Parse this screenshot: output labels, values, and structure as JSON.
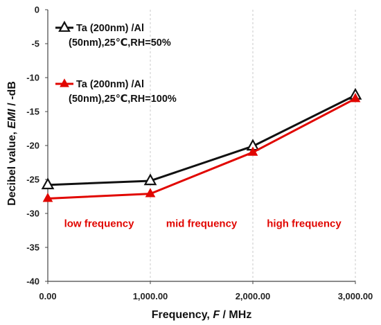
{
  "chart_data": {
    "type": "line",
    "x": [
      0,
      1000,
      2000,
      3000
    ],
    "x_tick_labels": [
      "0.00",
      "1,000.00",
      "2,000.00",
      "3,000.00"
    ],
    "xlim": [
      0,
      3000
    ],
    "ylim": [
      -40,
      0
    ],
    "y_ticks": [
      0,
      -5,
      -10,
      -15,
      -20,
      -25,
      -30,
      -35,
      -40
    ],
    "y_tick_labels": [
      "0",
      "-5",
      "-10",
      "-15",
      "-20",
      "-25",
      "-30",
      "-35",
      "-40"
    ],
    "xlabel": {
      "pre": "Frequency, ",
      "italic": "F",
      "post": " / MHz"
    },
    "ylabel": {
      "pre": "Decibel value, ",
      "italic": "EMI",
      "post": " / -dB"
    },
    "grid": "vertical dashed",
    "legend_position": "top-left",
    "series": [
      {
        "name_line1": "Ta (200nm) /Al",
        "name_line2": "(50nm),25℃,RH=50%",
        "color": "#111111",
        "marker": "hollow-triangle",
        "values": [
          -25.8,
          -25.2,
          -20.1,
          -12.6
        ]
      },
      {
        "name_line1": "Ta (200nm) /Al",
        "name_line2": "(50nm),25℃,RH=100%",
        "color": "#e10600",
        "marker": "filled-triangle",
        "values": [
          -27.8,
          -27.1,
          -21.0,
          -13.1
        ]
      }
    ],
    "annotations": [
      {
        "text": "low frequency",
        "x": 500,
        "y": -31.5
      },
      {
        "text": "mid frequency",
        "x": 1500,
        "y": -31.5
      },
      {
        "text": "high frequency",
        "x": 2500,
        "y": -31.5
      }
    ]
  }
}
